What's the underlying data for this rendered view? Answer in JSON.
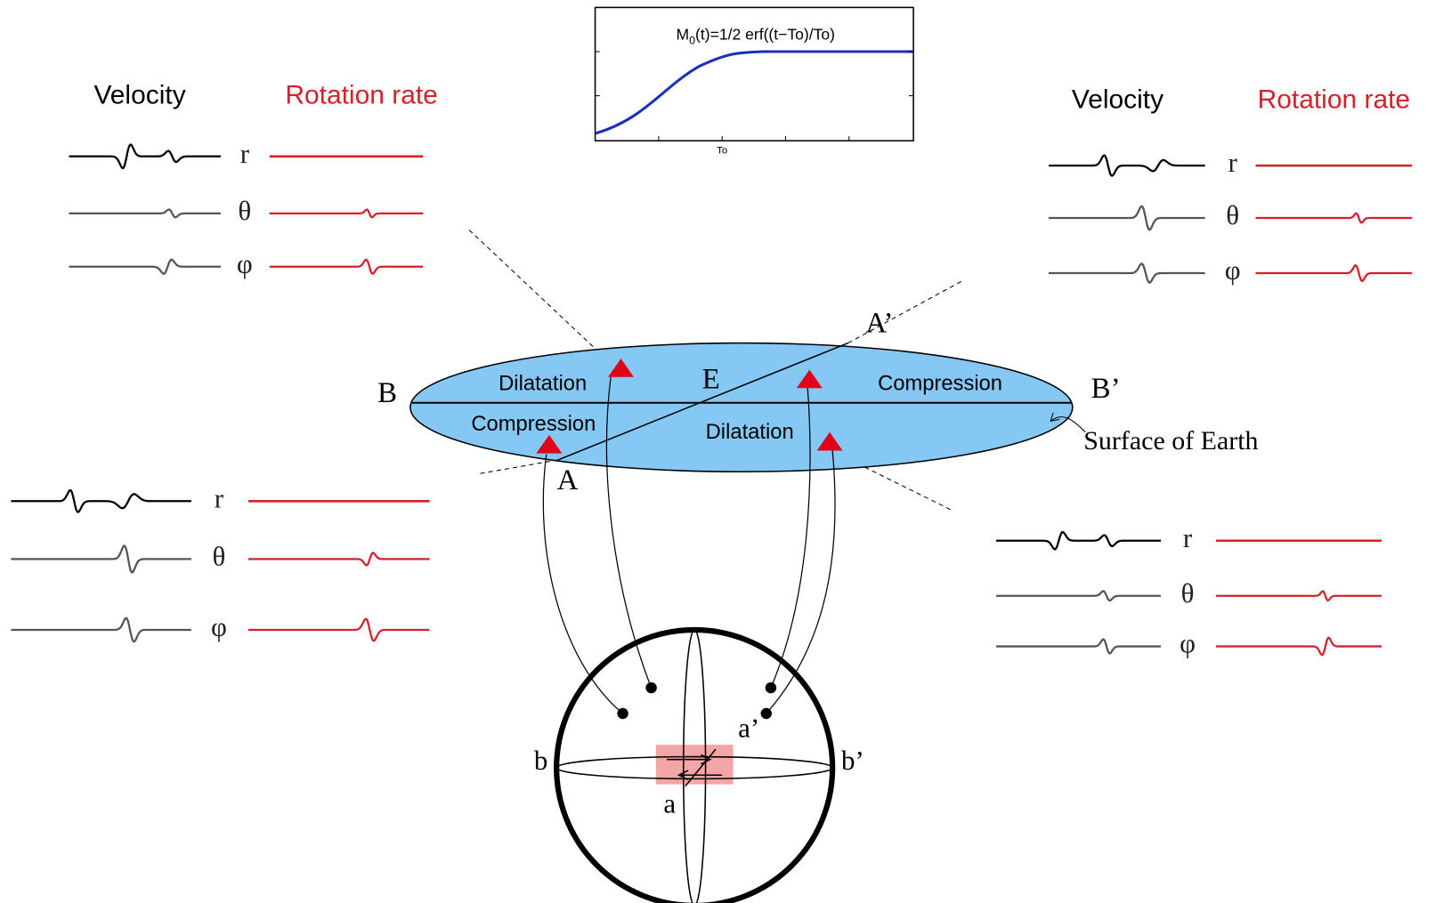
{
  "inset": {
    "formula": {
      "base": "M",
      "subscript": "0",
      "rest": "(t)=1/2 erf((t−To)/To)"
    },
    "tick_label": "To"
  },
  "panels": [
    {
      "headers": {
        "velocity": "Velocity",
        "rotation": "Rotation rate"
      },
      "components": [
        "r",
        "θ",
        "φ"
      ]
    },
    {
      "headers": {
        "velocity": "Velocity",
        "rotation": "Rotation rate"
      },
      "components": [
        "r",
        "θ",
        "φ"
      ]
    },
    {
      "components": [
        "r",
        "θ",
        "φ"
      ]
    },
    {
      "components": [
        "r",
        "θ",
        "φ"
      ]
    }
  ],
  "focal_plane": {
    "regions": [
      "Dilatation",
      "Compression",
      "Compression",
      "Dilatation"
    ],
    "epicenter": "E",
    "points": [
      "B",
      "B’",
      "A",
      "A’"
    ],
    "surface_label": "Surface of Earth"
  },
  "sphere": {
    "points": [
      "b",
      "b’",
      "a",
      "a’"
    ]
  }
}
